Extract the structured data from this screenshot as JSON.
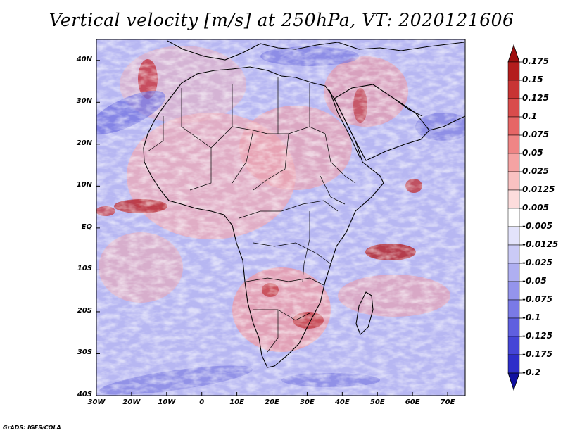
{
  "title": "Vertical velocity [m/s] at 250hPa, VT: 2020121606",
  "footer": "GrADS: IGES/COLA",
  "map": {
    "region": "Africa",
    "variable": "Vertical velocity",
    "units": "m/s",
    "level": "250hPa",
    "valid_time": "2020121606",
    "lon_range": [
      -30,
      75
    ],
    "lat_range": [
      -40,
      45
    ],
    "lat_ticks": [
      {
        "value": 40,
        "label": "40N"
      },
      {
        "value": 30,
        "label": "30N"
      },
      {
        "value": 20,
        "label": "20N"
      },
      {
        "value": 10,
        "label": "10N"
      },
      {
        "value": 0,
        "label": "EQ"
      },
      {
        "value": -10,
        "label": "10S"
      },
      {
        "value": -20,
        "label": "20S"
      },
      {
        "value": -30,
        "label": "30S"
      },
      {
        "value": -40,
        "label": "40S"
      }
    ],
    "lon_ticks": [
      {
        "value": -30,
        "label": "30W"
      },
      {
        "value": -20,
        "label": "20W"
      },
      {
        "value": -10,
        "label": "10W"
      },
      {
        "value": 0,
        "label": "0"
      },
      {
        "value": 10,
        "label": "10E"
      },
      {
        "value": 20,
        "label": "20E"
      },
      {
        "value": 30,
        "label": "30E"
      },
      {
        "value": 40,
        "label": "40E"
      },
      {
        "value": 50,
        "label": "50E"
      },
      {
        "value": 60,
        "label": "60E"
      },
      {
        "value": 70,
        "label": "70E"
      }
    ]
  },
  "colorbar": {
    "levels": [
      {
        "label": "0.175",
        "color": "#b31d1d"
      },
      {
        "label": "0.15",
        "color": "#c83434"
      },
      {
        "label": "0.125",
        "color": "#d94c4c"
      },
      {
        "label": "0.1",
        "color": "#e66666"
      },
      {
        "label": "0.075",
        "color": "#ef8585"
      },
      {
        "label": "0.05",
        "color": "#f5a3a3"
      },
      {
        "label": "0.025",
        "color": "#f9c1c1"
      },
      {
        "label": "0.0125",
        "color": "#fcdcdc"
      },
      {
        "label": "0.005",
        "color": "#ffffff"
      },
      {
        "label": "-0.005",
        "color": "#e3e3fb"
      },
      {
        "label": "-0.0125",
        "color": "#cacaf6"
      },
      {
        "label": "-0.025",
        "color": "#afaff1"
      },
      {
        "label": "-0.05",
        "color": "#9494ec"
      },
      {
        "label": "-0.075",
        "color": "#7a7ae6"
      },
      {
        "label": "-0.1",
        "color": "#5f5fdf"
      },
      {
        "label": "-0.125",
        "color": "#4545d6"
      },
      {
        "label": "-0.175",
        "color": "#2e2ec9"
      },
      {
        "label": "-0.2",
        "color": "#1a1ab0"
      }
    ],
    "top_arrow_color": "#a01010",
    "bottom_arrow_color": "#1010a0"
  }
}
